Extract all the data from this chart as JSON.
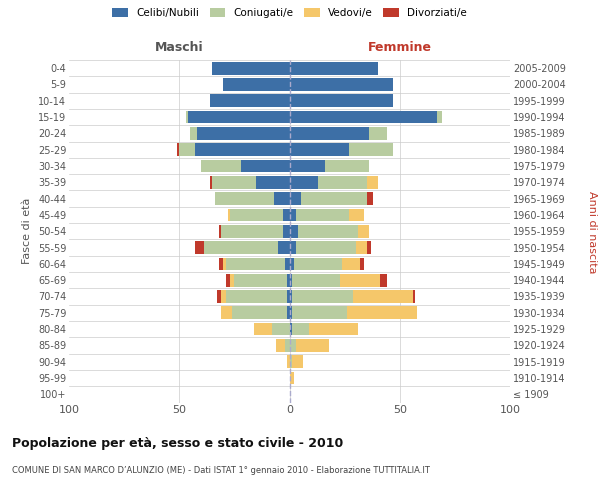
{
  "age_groups": [
    "100+",
    "95-99",
    "90-94",
    "85-89",
    "80-84",
    "75-79",
    "70-74",
    "65-69",
    "60-64",
    "55-59",
    "50-54",
    "45-49",
    "40-44",
    "35-39",
    "30-34",
    "25-29",
    "20-24",
    "15-19",
    "10-14",
    "5-9",
    "0-4"
  ],
  "birth_years": [
    "≤ 1909",
    "1910-1914",
    "1915-1919",
    "1920-1924",
    "1925-1929",
    "1930-1934",
    "1935-1939",
    "1940-1944",
    "1945-1949",
    "1950-1954",
    "1955-1959",
    "1960-1964",
    "1965-1969",
    "1970-1974",
    "1975-1979",
    "1980-1984",
    "1985-1989",
    "1990-1994",
    "1995-1999",
    "2000-2004",
    "2005-2009"
  ],
  "male_celibi": [
    0,
    0,
    0,
    0,
    0,
    1,
    1,
    1,
    2,
    5,
    3,
    3,
    7,
    15,
    22,
    43,
    42,
    46,
    36,
    30,
    35
  ],
  "male_coniugati": [
    0,
    0,
    0,
    2,
    8,
    25,
    28,
    24,
    27,
    34,
    28,
    24,
    27,
    20,
    18,
    7,
    3,
    1,
    0,
    0,
    0
  ],
  "male_vedovi": [
    0,
    0,
    1,
    4,
    8,
    5,
    2,
    2,
    1,
    0,
    0,
    1,
    0,
    0,
    0,
    0,
    0,
    0,
    0,
    0,
    0
  ],
  "male_divorziati": [
    0,
    0,
    0,
    0,
    0,
    0,
    2,
    2,
    2,
    4,
    1,
    0,
    0,
    1,
    0,
    1,
    0,
    0,
    0,
    0,
    0
  ],
  "female_nubili": [
    0,
    0,
    0,
    0,
    1,
    1,
    1,
    1,
    2,
    3,
    4,
    3,
    5,
    13,
    16,
    27,
    36,
    67,
    47,
    47,
    40
  ],
  "female_coniugate": [
    0,
    0,
    1,
    3,
    8,
    25,
    28,
    22,
    22,
    27,
    27,
    24,
    30,
    22,
    20,
    20,
    8,
    2,
    0,
    0,
    0
  ],
  "female_vedove": [
    0,
    2,
    5,
    15,
    22,
    32,
    27,
    18,
    8,
    5,
    5,
    7,
    0,
    5,
    0,
    0,
    0,
    0,
    0,
    0,
    0
  ],
  "female_divorziate": [
    0,
    0,
    0,
    0,
    0,
    0,
    1,
    3,
    2,
    2,
    0,
    0,
    3,
    0,
    0,
    0,
    0,
    0,
    0,
    0,
    0
  ],
  "color_celibi": "#3d6fa6",
  "color_coniugati": "#b8cca0",
  "color_vedovi": "#f5c76a",
  "color_divorziati": "#c0392b",
  "title": "Popolazione per età, sesso e stato civile - 2010",
  "subtitle": "COMUNE DI SAN MARCO D’ALUNZIO (ME) - Dati ISTAT 1° gennaio 2010 - Elaborazione TUTTITALIA.IT",
  "label_maschi": "Maschi",
  "label_femmine": "Femmine",
  "ylabel_left": "Fasce di età",
  "ylabel_right": "Anni di nascita",
  "legend_labels": [
    "Celibi/Nubili",
    "Coniugati/e",
    "Vedovi/e",
    "Divorziati/e"
  ],
  "xlim": 100,
  "bar_height": 0.78
}
